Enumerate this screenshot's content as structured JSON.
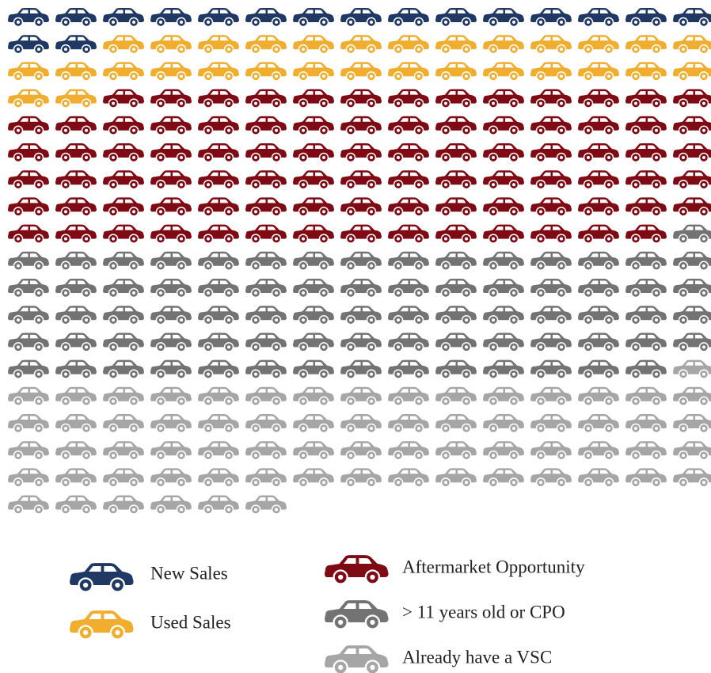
{
  "chart_data": {
    "type": "pictograph",
    "categories": [
      "New Sales",
      "Used Sales",
      "Aftermarket Opportunity",
      "> 11 years old or CPO",
      "Already have a VSC"
    ],
    "values": [
      17,
      30,
      87,
      75,
      67
    ],
    "colors": [
      "#1f3864",
      "#f0ad2e",
      "#7f0a14",
      "#737373",
      "#a6a6a6"
    ],
    "columns": 15
  }
}
